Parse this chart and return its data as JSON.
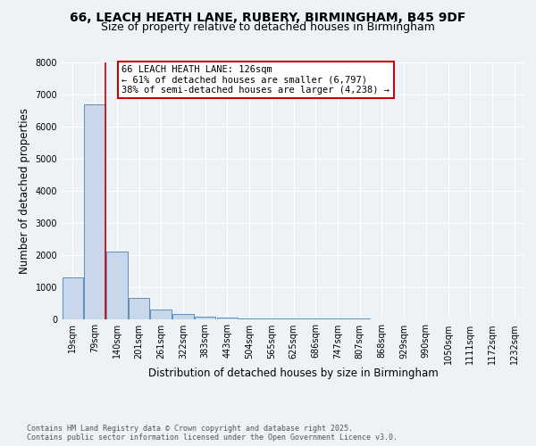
{
  "title_line1": "66, LEACH HEATH LANE, RUBERY, BIRMINGHAM, B45 9DF",
  "title_line2": "Size of property relative to detached houses in Birmingham",
  "xlabel": "Distribution of detached houses by size in Birmingham",
  "ylabel": "Number of detached properties",
  "bin_labels": [
    "19sqm",
    "79sqm",
    "140sqm",
    "201sqm",
    "261sqm",
    "322sqm",
    "383sqm",
    "443sqm",
    "504sqm",
    "565sqm",
    "625sqm",
    "686sqm",
    "747sqm",
    "807sqm",
    "868sqm",
    "929sqm",
    "990sqm",
    "1050sqm",
    "1111sqm",
    "1172sqm",
    "1232sqm"
  ],
  "bin_values": [
    1300,
    6700,
    2100,
    650,
    300,
    150,
    80,
    50,
    20,
    10,
    5,
    2,
    1,
    1,
    0,
    0,
    0,
    0,
    0,
    0,
    0
  ],
  "bar_color": "#c8d8ea",
  "bar_edge_color": "#6090b8",
  "vline_x": 1.5,
  "vline_color": "#cc0000",
  "annotation_text": "66 LEACH HEATH LANE: 126sqm\n← 61% of detached houses are smaller (6,797)\n38% of semi-detached houses are larger (4,238) →",
  "annotation_box_color": "white",
  "annotation_box_edge_color": "#cc0000",
  "ylim": [
    0,
    8000
  ],
  "yticks": [
    0,
    1000,
    2000,
    3000,
    4000,
    5000,
    6000,
    7000,
    8000
  ],
  "background_color": "#edf2f7",
  "grid_color": "#ffffff",
  "footer_text": "Contains HM Land Registry data © Crown copyright and database right 2025.\nContains public sector information licensed under the Open Government Licence v3.0.",
  "title_fontsize": 10,
  "subtitle_fontsize": 9,
  "axis_label_fontsize": 8.5,
  "tick_fontsize": 7,
  "annotation_fontsize": 7.5
}
